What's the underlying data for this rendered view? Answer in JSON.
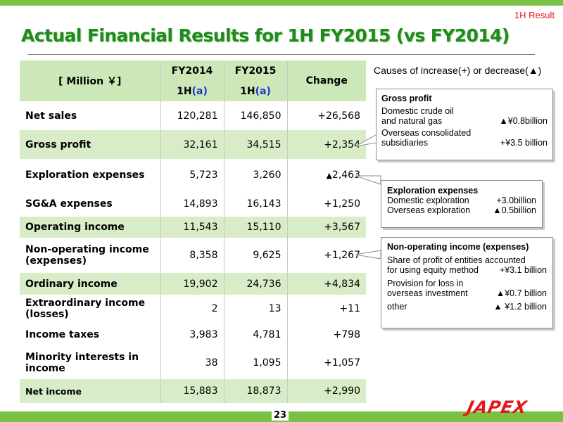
{
  "header": {
    "tag": "1H Result",
    "title": "Actual Financial Results for 1H FY2015 (vs FY2014)"
  },
  "table": {
    "unit_label": "[ Million ￥]",
    "col_fy2014": "FY2014",
    "col_fy2015": "FY2015",
    "col_change": "Change",
    "sub_prefix": "1H",
    "sub_suffix": "(a)",
    "rows": [
      {
        "label": "Net sales",
        "fy2014": "120,281",
        "fy2015": "146,850",
        "change": "+26,568"
      },
      {
        "label": "Gross profit",
        "fy2014": "32,161",
        "fy2015": "34,515",
        "change": "+2,354"
      },
      {
        "label": "Exploration expenses",
        "fy2014": "5,723",
        "fy2015": "3,260",
        "change_sign": "▲",
        "change": "2,463"
      },
      {
        "label": "SG&A expenses",
        "fy2014": "14,893",
        "fy2015": "16,143",
        "change": "+1,250"
      },
      {
        "label": "Operating income",
        "fy2014": "11,543",
        "fy2015": "15,110",
        "change": "+3,567"
      },
      {
        "label_l1": "Non-operating income",
        "label_l2": "(expenses)",
        "fy2014": "8,358",
        "fy2015": "9,625",
        "change": "+1,267"
      },
      {
        "label": "Ordinary income",
        "fy2014": "19,902",
        "fy2015": "24,736",
        "change": "+4,834"
      },
      {
        "label_l1": "Extraordinary income",
        "label_l2": "(losses)",
        "fy2014": "2",
        "fy2015": "13",
        "change": "+11"
      },
      {
        "label": "Income taxes",
        "fy2014": "3,983",
        "fy2015": "4,781",
        "change": "+798"
      },
      {
        "label_l1": "Minority interests in",
        "label_l2": "income",
        "fy2014": "38",
        "fy2015": "1,095",
        "change": "+1,057"
      },
      {
        "label": "Net income",
        "fy2014": "15,883",
        "fy2015": "18,873",
        "change": "+2,990"
      }
    ]
  },
  "causes": {
    "title": "Causes of increase(+)  or decrease(▲)",
    "gross_profit": {
      "title": "Gross profit",
      "item1_l1": "Domestic crude oil",
      "item1_l2": "and natural gas",
      "item1_value": "▲¥0.8billion",
      "item2_l1": "Overseas consolidated",
      "item2_l2": "subsidiaries",
      "item2_value": "+¥3.5 billion"
    },
    "exploration": {
      "title": "Exploration expenses",
      "item1_label": "Domestic exploration",
      "item1_value": "+3.0billion",
      "item2_label": "Overseas exploration",
      "item2_value": "▲0.5billion"
    },
    "non_operating": {
      "title": "Non-operating income (expenses)",
      "item1_l1": "Share of profit of entities accounted",
      "item1_l2": "for using equity method",
      "item1_value": "+¥3.1 billion",
      "item2_l1": "Provision for loss in",
      "item2_l2": "overseas investment",
      "item2_value": "▲¥0.7 billion",
      "item3_label": "other",
      "item3_value": "▲ ¥1.2 billion"
    }
  },
  "footer": {
    "page_number": "23",
    "logo_text": "JAPEX"
  },
  "colors": {
    "accent_green": "#7ac143",
    "title_green": "#1f8a1f",
    "row_green": "#d8edc7",
    "header_green": "#cde8b8",
    "tag_red": "#e8141c",
    "blue_a": "#1c34c9"
  }
}
